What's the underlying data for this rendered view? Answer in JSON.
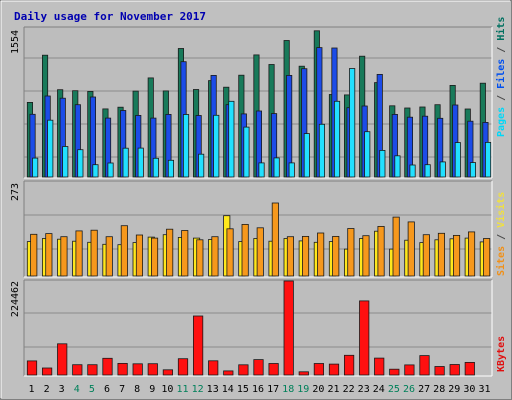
{
  "chart_data": {
    "type": "bar",
    "title": "Daily usage for November 2017",
    "days": [
      "1",
      "2",
      "3",
      "4",
      "5",
      "6",
      "7",
      "8",
      "9",
      "10",
      "11",
      "12",
      "13",
      "14",
      "15",
      "16",
      "17",
      "18",
      "19",
      "20",
      "21",
      "22",
      "23",
      "24",
      "25",
      "26",
      "27",
      "28",
      "29",
      "30",
      "31"
    ],
    "weekend_days": [
      "4",
      "5",
      "11",
      "12",
      "18",
      "19",
      "25",
      "26"
    ],
    "top_panel": {
      "ymax_label": "1554",
      "ymax": 1554,
      "right_labels": [
        {
          "text": "Pages",
          "color": "#00d8f8"
        },
        {
          "text": " / ",
          "color": "#4a4a4a"
        },
        {
          "text": "Files",
          "color": "#0050f0"
        },
        {
          "text": " / ",
          "color": "#4a4a4a"
        },
        {
          "text": "Hits",
          "color": "#007060"
        }
      ],
      "series": [
        {
          "name": "Hits",
          "color": "#187a5a",
          "values": [
            778,
            1270,
            910,
            900,
            893,
            710,
            728,
            896,
            1034,
            898,
            1340,
            913,
            1005,
            937,
            1062,
            1273,
            1173,
            1424,
            1156,
            1525,
            860,
            856,
            1260,
            985,
            743,
            720,
            730,
            754,
            955,
            709,
            978
          ]
        },
        {
          "name": "Files",
          "color": "#1c4ce8",
          "values": [
            654,
            845,
            822,
            754,
            834,
            614,
            694,
            642,
            614,
            653,
            1203,
            641,
            1060,
            754,
            658,
            688,
            661,
            1060,
            1130,
            1350,
            1345,
            723,
            741,
            1070,
            653,
            624,
            634,
            612,
            751,
            582,
            569
          ]
        },
        {
          "name": "Pages",
          "color": "#22e0ff",
          "values": [
            197,
            592,
            318,
            285,
            128,
            146,
            300,
            301,
            195,
            174,
            652,
            238,
            643,
            790,
            520,
            147,
            199,
            147,
            453,
            550,
            790,
            1132,
            472,
            277,
            221,
            125,
            128,
            158,
            359,
            150,
            361
          ]
        }
      ]
    },
    "middle_panel": {
      "ymax_label": "273",
      "ymax": 273,
      "right_labels": [
        {
          "text": "Sites",
          "color": "#f09018"
        },
        {
          "text": " / ",
          "color": "#4a4a4a"
        },
        {
          "text": "Visits",
          "color": "#f0e040"
        }
      ],
      "series": [
        {
          "name": "Visits",
          "color": "#ffe81c",
          "values": [
            100,
            109,
            107,
            101,
            98,
            92,
            91,
            97,
            113,
            120,
            112,
            110,
            106,
            175,
            100,
            109,
            101,
            109,
            102,
            98,
            100,
            78,
            109,
            130,
            78,
            104,
            97,
            105,
            108,
            110,
            99
          ]
        },
        {
          "name": "Sites",
          "color": "#f6981c",
          "values": [
            121,
            123,
            114,
            131,
            133,
            114,
            146,
            119,
            110,
            136,
            132,
            105,
            114,
            137,
            150,
            140,
            212,
            114,
            115,
            125,
            115,
            138,
            117,
            144,
            171,
            157,
            120,
            124,
            118,
            128,
            109
          ]
        }
      ]
    },
    "bottom_panel": {
      "ymax_label": "224462",
      "ymax": 224462,
      "right_labels": [
        {
          "text": "KBytes",
          "color": "#e01010"
        }
      ],
      "series": [
        {
          "name": "KBytes",
          "color": "#ff1010",
          "values": [
            33618,
            16810,
            74400,
            24650,
            24650,
            39900,
            27650,
            26750,
            27090,
            12470,
            38970,
            140780,
            33840,
            9870,
            24280,
            36740,
            27560,
            224462,
            7610,
            27580,
            26060,
            46970,
            177060,
            40260,
            13780,
            24100,
            46400,
            20400,
            25000,
            30040,
            0
          ]
        }
      ]
    }
  }
}
